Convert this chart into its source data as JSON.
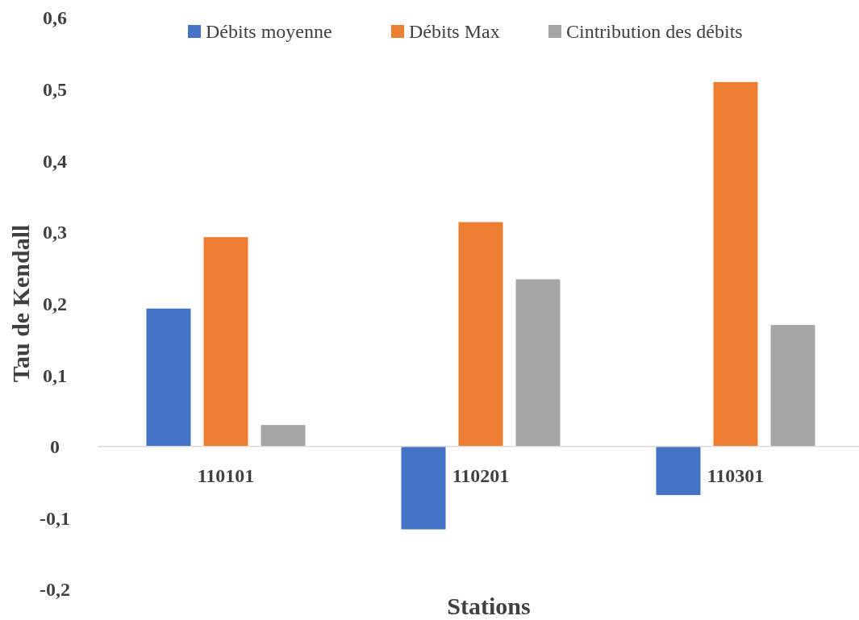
{
  "chart_data": {
    "type": "bar",
    "xlabel": "Stations",
    "ylabel": "Tau de Kendall",
    "categories": [
      "110101",
      "110201",
      "110301"
    ],
    "series": [
      {
        "name": "Débits moyenne",
        "color": "#4472c4",
        "values": [
          0.193,
          -0.116,
          -0.068
        ]
      },
      {
        "name": "Débits Max",
        "color": "#ed7d31",
        "values": [
          0.293,
          0.314,
          0.51
        ]
      },
      {
        "name": "Cintribution des débits",
        "color": "#a5a5a5",
        "values": [
          0.03,
          0.234,
          0.17
        ]
      }
    ],
    "ylim": [
      -0.2,
      0.6
    ],
    "yticks": [
      {
        "value": -0.2,
        "label": "-0,2"
      },
      {
        "value": -0.1,
        "label": "-0,1"
      },
      0,
      {
        "value": 0.1,
        "label": "0,1"
      },
      {
        "value": 0.2,
        "label": "0,2"
      },
      {
        "value": 0.3,
        "label": "0,3"
      },
      {
        "value": 0.4,
        "label": "0,4"
      },
      {
        "value": 0.5,
        "label": "0,5"
      },
      {
        "value": 0.6,
        "label": "0,6"
      }
    ],
    "grid": false,
    "legend": "top"
  }
}
